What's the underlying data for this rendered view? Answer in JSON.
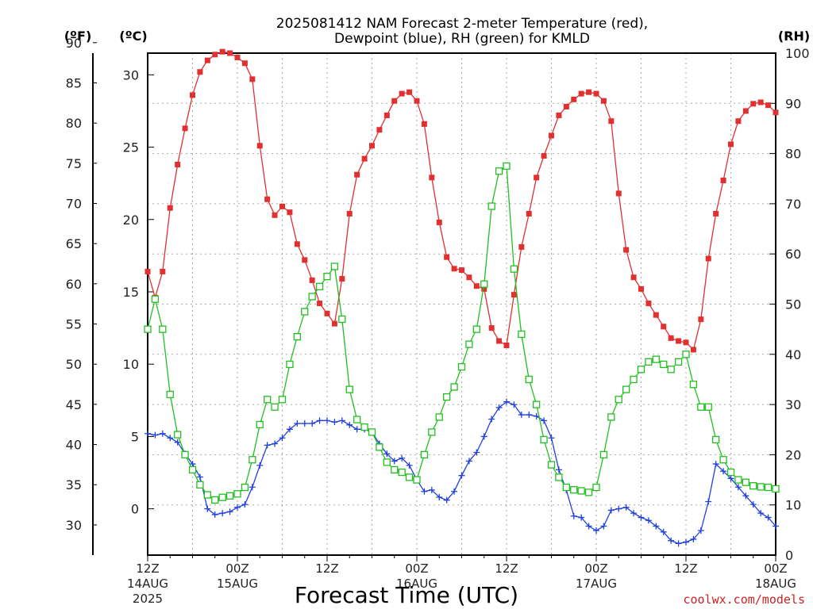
{
  "chart_data": {
    "type": "line",
    "title_line1": "2025081412 NAM Forecast 2-meter Temperature (red),",
    "title_line2": "Dewpoint (blue), RH (green) for KMLD",
    "unit_f": "(ºF)",
    "unit_c": "(ºC)",
    "unit_rh": "(RH)",
    "xlabel": "Forecast Time (UTC)",
    "watermark": "coolwx.com/models",
    "x_ticks": [
      {
        "hour": 0,
        "l1": "12Z",
        "l2": "14AUG",
        "l3": "2025"
      },
      {
        "hour": 12,
        "l1": "00Z",
        "l2": "15AUG",
        "l3": ""
      },
      {
        "hour": 24,
        "l1": "12Z",
        "l2": "",
        "l3": ""
      },
      {
        "hour": 36,
        "l1": "00Z",
        "l2": "16AUG",
        "l3": ""
      },
      {
        "hour": 48,
        "l1": "12Z",
        "l2": "",
        "l3": ""
      },
      {
        "hour": 60,
        "l1": "00Z",
        "l2": "17AUG",
        "l3": ""
      },
      {
        "hour": 72,
        "l1": "12Z",
        "l2": "",
        "l3": ""
      },
      {
        "hour": 84,
        "l1": "00Z",
        "l2": "18AUG",
        "l3": ""
      }
    ],
    "x_range": [
      0,
      84
    ],
    "celsius_range": [
      -3.2,
      31.5
    ],
    "rh_range": [
      0,
      100
    ],
    "f_ticks": [
      30,
      35,
      40,
      45,
      50,
      55,
      60,
      65,
      70,
      75,
      80,
      85,
      90
    ],
    "c_ticks": [
      0,
      5,
      10,
      15,
      20,
      25,
      30
    ],
    "rh_ticks": [
      0,
      10,
      20,
      30,
      40,
      50,
      60,
      70,
      80,
      90,
      100
    ],
    "grid": true,
    "series": [
      {
        "name": "Temperature",
        "color": "#e03030",
        "marker": "filled-square",
        "values": [
          16.4,
          14.6,
          16.4,
          20.8,
          23.8,
          26.3,
          28.6,
          30.2,
          31.0,
          31.4,
          31.6,
          31.5,
          31.2,
          30.8,
          29.7,
          25.1,
          21.4,
          20.3,
          20.9,
          20.5,
          18.3,
          17.2,
          15.8,
          14.2,
          13.5,
          12.8,
          15.9,
          20.4,
          23.1,
          24.2,
          25.1,
          26.2,
          27.2,
          28.2,
          28.7,
          28.8,
          28.2,
          26.6,
          22.9,
          19.8,
          17.4,
          16.6,
          16.5,
          16.0,
          15.4,
          15.2,
          12.5,
          11.6,
          11.3,
          14.8,
          18.1,
          20.4,
          22.9,
          24.4,
          25.8,
          27.2,
          27.8,
          28.3,
          28.7,
          28.8,
          28.7,
          28.2,
          26.8,
          21.8,
          17.9,
          16.0,
          15.2,
          14.2,
          13.4,
          12.6,
          11.8,
          11.6,
          11.5,
          11.0,
          13.1,
          17.3,
          20.4,
          22.7,
          25.2,
          26.8,
          27.5,
          28.0,
          28.1,
          27.9,
          27.4
        ]
      },
      {
        "name": "Dewpoint",
        "color": "#2040e0",
        "marker": "plus",
        "values": [
          5.2,
          5.1,
          5.2,
          4.9,
          4.6,
          3.8,
          3.1,
          2.2,
          0.0,
          -0.4,
          -0.3,
          -0.2,
          0.1,
          0.3,
          1.5,
          3.0,
          4.4,
          4.5,
          4.9,
          5.5,
          5.9,
          5.9,
          5.9,
          6.1,
          6.1,
          6.0,
          6.1,
          5.8,
          5.5,
          5.5,
          5.3,
          4.5,
          3.8,
          3.3,
          3.5,
          3.0,
          2.0,
          1.2,
          1.3,
          0.8,
          0.6,
          1.2,
          2.3,
          3.3,
          3.9,
          5.0,
          6.2,
          7.0,
          7.4,
          7.2,
          6.5,
          6.5,
          6.4,
          6.1,
          4.9,
          2.7,
          1.3,
          -0.5,
          -0.6,
          -1.2,
          -1.5,
          -1.2,
          -0.1,
          0.0,
          0.1,
          -0.3,
          -0.6,
          -0.8,
          -1.2,
          -1.6,
          -2.2,
          -2.4,
          -2.3,
          -2.1,
          -1.5,
          0.5,
          3.1,
          2.6,
          2.1,
          1.5,
          0.9,
          0.3,
          -0.3,
          -0.6,
          -1.2
        ]
      },
      {
        "name": "RH",
        "color": "#20c020",
        "marker": "open-square",
        "values": [
          45,
          51,
          45,
          32,
          24,
          20,
          17,
          14,
          12,
          11,
          11.5,
          11.8,
          12.2,
          13.5,
          19,
          26,
          31,
          29.5,
          31,
          38,
          43.5,
          48.5,
          51.5,
          53.5,
          55.5,
          57.5,
          47,
          33,
          27,
          25.5,
          24.5,
          21.5,
          18.5,
          17,
          16.5,
          15.5,
          15,
          20,
          24.5,
          27.5,
          31.5,
          33.5,
          37.5,
          42,
          45,
          54,
          69.5,
          76.5,
          77.5,
          57,
          44,
          35,
          30,
          23,
          18,
          15.5,
          13.5,
          13,
          12.8,
          12.5,
          13.5,
          20,
          27.5,
          31,
          33,
          35,
          37,
          38.5,
          39,
          38,
          37,
          38.5,
          40,
          34,
          29.5,
          29.5,
          23,
          19,
          16.5,
          15,
          14.5,
          13.8,
          13.6,
          13.5,
          13.2
        ]
      }
    ]
  }
}
